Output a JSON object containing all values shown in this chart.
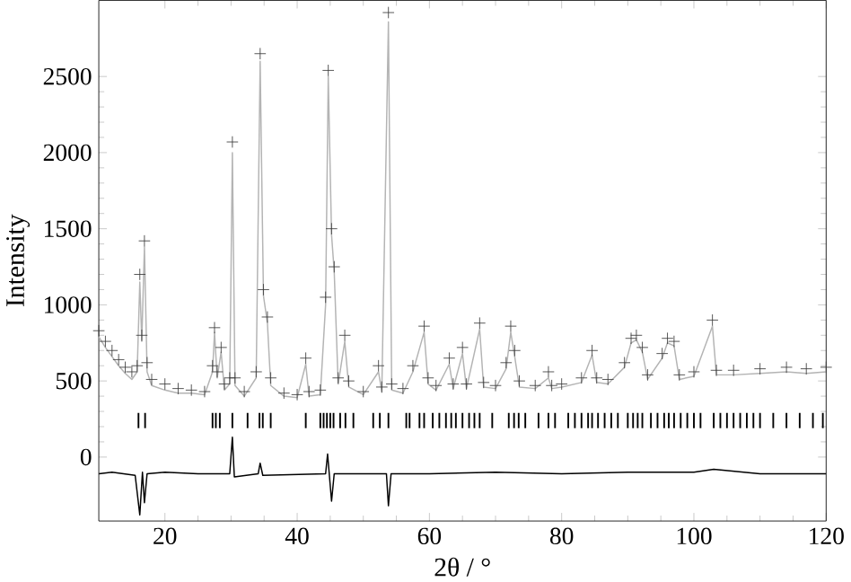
{
  "chart_data": {
    "type": "scatter",
    "xlabel": "2θ / °",
    "ylabel": "Intensity",
    "xlim": [
      10,
      120
    ],
    "ylim": [
      -420,
      3000
    ],
    "xticks": [
      20,
      40,
      60,
      80,
      100,
      120
    ],
    "yticks": [
      0,
      500,
      1000,
      1500,
      2000,
      2500
    ],
    "series": [
      {
        "marker": "cross",
        "color": "#3a3a3a",
        "x": [
          10,
          11,
          12,
          13,
          14,
          15,
          15.8,
          16.2,
          16.5,
          16.9,
          17.3,
          18,
          20,
          22,
          24,
          26,
          27.2,
          27.5,
          27.9,
          28.5,
          29,
          29.8,
          30.2,
          30.6,
          32,
          33.8,
          34.4,
          34.9,
          35.5,
          36,
          38,
          40,
          41.3,
          41.8,
          43.5,
          44.3,
          44.7,
          45.2,
          45.6,
          46.2,
          47.2,
          47.8,
          50,
          52.3,
          52.8,
          53.8,
          54.3,
          56,
          57.5,
          59.2,
          59.8,
          61,
          63,
          63.6,
          65,
          65.6,
          67.6,
          68.2,
          70,
          71.6,
          72.3,
          72.9,
          73.6,
          76,
          78,
          78.5,
          80,
          83,
          84.6,
          85.3,
          87,
          89.5,
          90.5,
          91.3,
          92.2,
          93,
          95.2,
          96,
          97,
          97.8,
          100,
          102.8,
          103.4,
          106,
          110,
          114,
          117,
          120
        ],
        "values": [
          830,
          760,
          700,
          640,
          590,
          560,
          600,
          1200,
          800,
          1420,
          620,
          510,
          480,
          450,
          440,
          430,
          600,
          850,
          560,
          720,
          480,
          520,
          2070,
          520,
          430,
          560,
          2650,
          1100,
          920,
          520,
          420,
          410,
          650,
          430,
          440,
          1050,
          2540,
          1500,
          1250,
          520,
          800,
          500,
          430,
          600,
          460,
          2920,
          480,
          450,
          600,
          860,
          520,
          470,
          650,
          480,
          720,
          480,
          880,
          490,
          470,
          620,
          860,
          700,
          500,
          470,
          560,
          470,
          480,
          520,
          700,
          520,
          510,
          620,
          780,
          800,
          720,
          540,
          680,
          780,
          760,
          540,
          560,
          900,
          570,
          570,
          580,
          590,
          580,
          590
        ]
      },
      {
        "type": "line",
        "marker": "none",
        "color": "#b4b4b4",
        "x": [
          10,
          11,
          12,
          13,
          14,
          15,
          15.8,
          16.2,
          16.5,
          16.9,
          17.3,
          18,
          20,
          22,
          24,
          26,
          27.2,
          27.5,
          27.9,
          28.5,
          29,
          29.8,
          30.2,
          30.6,
          32,
          33.8,
          34.4,
          34.9,
          35.5,
          36,
          38,
          40,
          41.3,
          41.8,
          43.5,
          44.3,
          44.7,
          45.2,
          45.6,
          46.2,
          47.2,
          47.8,
          50,
          52.3,
          52.8,
          53.8,
          54.3,
          56,
          57.5,
          59.2,
          59.8,
          61,
          63,
          63.6,
          65,
          65.6,
          67.6,
          68.2,
          70,
          71.6,
          72.3,
          72.9,
          73.6,
          76,
          78,
          78.5,
          80,
          83,
          84.6,
          85.3,
          87,
          89.5,
          90.5,
          91.3,
          92.2,
          93,
          95.2,
          96,
          97,
          97.8,
          100,
          102.8,
          103.4,
          106,
          110,
          114,
          117,
          120
        ],
        "values": [
          790,
          720,
          660,
          600,
          550,
          510,
          560,
          1150,
          760,
          1380,
          560,
          470,
          440,
          420,
          420,
          410,
          560,
          820,
          520,
          690,
          440,
          480,
          2000,
          470,
          400,
          520,
          2600,
          1060,
          880,
          470,
          400,
          390,
          610,
          400,
          410,
          1000,
          2500,
          1460,
          1220,
          480,
          760,
          460,
          410,
          560,
          430,
          2860,
          440,
          420,
          560,
          820,
          480,
          440,
          610,
          450,
          680,
          450,
          840,
          460,
          450,
          580,
          820,
          660,
          460,
          450,
          520,
          450,
          460,
          490,
          670,
          490,
          480,
          590,
          750,
          770,
          690,
          510,
          650,
          750,
          730,
          510,
          530,
          860,
          540,
          540,
          550,
          560,
          550,
          560
        ]
      },
      {
        "type": "line",
        "marker": "none",
        "color": "#000000",
        "x": [
          10,
          12,
          15.5,
          16.2,
          16.6,
          16.9,
          17.3,
          20,
          25,
          29.8,
          30.2,
          30.5,
          34.1,
          34.4,
          34.8,
          44.3,
          44.6,
          45.2,
          45.6,
          53.5,
          53.8,
          54.2,
          60,
          70,
          80,
          90,
          100,
          103,
          110,
          120
        ],
        "values": [
          -110,
          -100,
          -120,
          -380,
          -100,
          -300,
          -110,
          -100,
          -110,
          -110,
          130,
          -130,
          -110,
          -40,
          -120,
          -110,
          20,
          -290,
          -110,
          -110,
          -320,
          -110,
          -110,
          -100,
          -110,
          -100,
          -100,
          -80,
          -110,
          -110
        ]
      },
      {
        "type": "bar",
        "color": "#000000",
        "x": [
          16,
          17,
          27.2,
          27.7,
          28.3,
          30.2,
          32.5,
          34.3,
          34.8,
          36,
          41.3,
          43.5,
          44,
          44.5,
          45,
          45.5,
          46.5,
          47.3,
          48.5,
          51.5,
          52.5,
          53.8,
          56.5,
          57,
          58.5,
          59.2,
          60.5,
          61.5,
          62.5,
          63.3,
          64,
          65,
          66,
          66.8,
          67.6,
          69.5,
          72,
          72.8,
          73.5,
          74.5,
          76.5,
          78,
          79,
          81,
          82,
          83,
          84,
          84.6,
          85.5,
          86.5,
          87.5,
          88.5,
          90,
          90.8,
          91.5,
          92.2,
          93.5,
          94.5,
          95.5,
          96.2,
          97,
          98,
          99,
          100,
          101,
          103,
          104,
          105,
          106,
          107,
          108,
          109,
          110,
          112,
          114,
          116,
          118,
          119.5
        ],
        "base": [
          190,
          190,
          190,
          190,
          190,
          190,
          190,
          190,
          190,
          190,
          190,
          190,
          190,
          190,
          190,
          190,
          190,
          190,
          190,
          190,
          190,
          190,
          190,
          190,
          190,
          190,
          190,
          190,
          190,
          190,
          190,
          190,
          190,
          190,
          190,
          190,
          190,
          190,
          190,
          190,
          190,
          190,
          190,
          190,
          190,
          190,
          190,
          190,
          190,
          190,
          190,
          190,
          190,
          190,
          190,
          190,
          190,
          190,
          190,
          190,
          190,
          190,
          190,
          190,
          190,
          190,
          190,
          190,
          190,
          190,
          190,
          190,
          190,
          190,
          190,
          190,
          190,
          190
        ],
        "values": [
          100,
          100,
          100,
          100,
          100,
          100,
          100,
          100,
          100,
          100,
          100,
          100,
          100,
          100,
          100,
          100,
          100,
          100,
          100,
          100,
          100,
          100,
          100,
          100,
          100,
          100,
          100,
          100,
          100,
          100,
          100,
          100,
          100,
          100,
          100,
          100,
          100,
          100,
          100,
          100,
          100,
          100,
          100,
          100,
          100,
          100,
          100,
          100,
          100,
          100,
          100,
          100,
          100,
          100,
          100,
          100,
          100,
          100,
          100,
          100,
          100,
          100,
          100,
          100,
          100,
          100,
          100,
          100,
          100,
          100,
          100,
          100,
          100,
          100,
          100,
          100,
          100,
          100
        ]
      }
    ]
  }
}
